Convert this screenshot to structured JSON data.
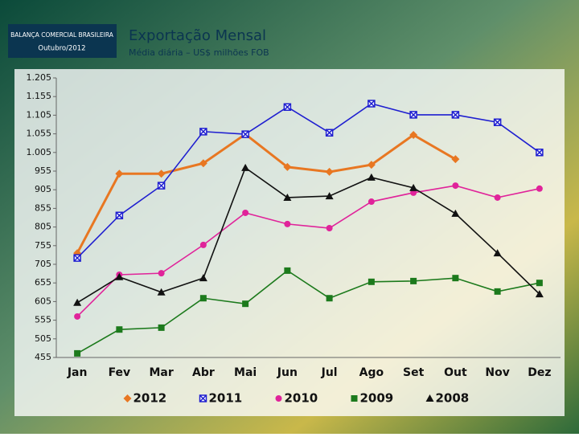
{
  "header": {
    "org": "BALANÇA COMERCIAL BRASILEIRA",
    "date": "Outubro/2012"
  },
  "chart_data": {
    "type": "line",
    "title": "Exportação Mensal",
    "subtitle": "Média diária – US$ milhões FOB",
    "categories": [
      "Jan",
      "Fev",
      "Mar",
      "Abr",
      "Mai",
      "Jun",
      "Jul",
      "Ago",
      "Set",
      "Out",
      "Nov",
      "Dez"
    ],
    "ylim": [
      455,
      1205
    ],
    "yticks": [
      455,
      505,
      555,
      605,
      655,
      705,
      755,
      805,
      855,
      905,
      955,
      {
        "value": 1005,
        "label": "1.005"
      },
      {
        "value": 1055,
        "label": "1.055"
      },
      {
        "value": 1105,
        "label": "1.105"
      },
      {
        "value": 1155,
        "label": "1.155"
      },
      {
        "value": 1205,
        "label": "1.205"
      }
    ],
    "grid": false,
    "legend": "bottom",
    "series": [
      {
        "name": "2012",
        "color": "#e87722",
        "marker": "diamond",
        "values": [
          735,
          948,
          948,
          976,
          1054,
          966,
          953,
          972,
          1052,
          987,
          null,
          null
        ]
      },
      {
        "name": "2011",
        "color": "#1f1fd0",
        "marker": "square-x",
        "values": [
          722,
          836,
          916,
          1061,
          1054,
          1127,
          1058,
          1136,
          1106,
          1106,
          1086,
          1005
        ]
      },
      {
        "name": "2010",
        "color": "#e0239a",
        "marker": "circle",
        "values": [
          565,
          677,
          681,
          757,
          843,
          813,
          802,
          873,
          897,
          916,
          884,
          908
        ]
      },
      {
        "name": "2009",
        "color": "#1c7a1c",
        "marker": "square",
        "values": [
          466,
          530,
          535,
          614,
          599,
          688,
          614,
          658,
          660,
          668,
          632,
          655
        ]
      },
      {
        "name": "2008",
        "color": "#111111",
        "marker": "triangle",
        "values": [
          602,
          671,
          630,
          668,
          964,
          884,
          888,
          938,
          910,
          841,
          735,
          625
        ]
      }
    ]
  }
}
